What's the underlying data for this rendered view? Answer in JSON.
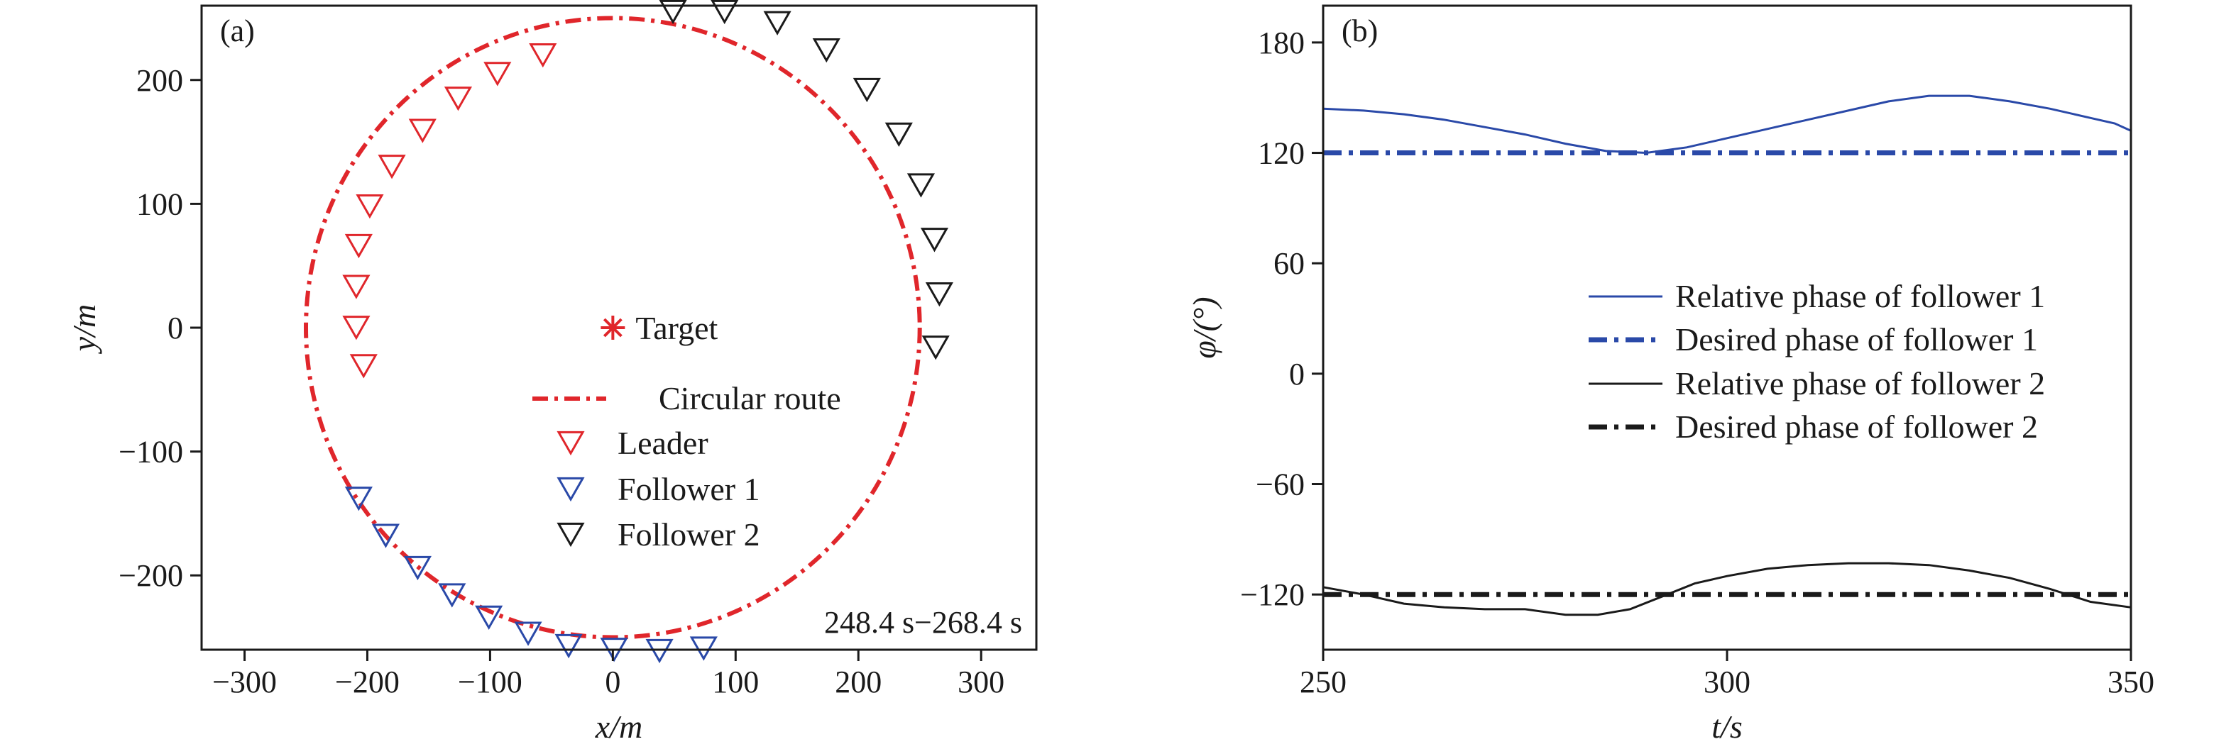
{
  "chart_data": [
    {
      "type": "scatter",
      "panel_label": "(a)",
      "xlabel": "x/m",
      "ylabel": "y/m",
      "xlim": [
        -335,
        345
      ],
      "ylim": [
        -260,
        260
      ],
      "xticks": [
        -300,
        -200,
        -100,
        0,
        100,
        200,
        300
      ],
      "yticks": [
        -200,
        -100,
        0,
        100,
        200
      ],
      "xtick_labels": [
        "−300",
        "−200",
        "−100",
        "0",
        "100",
        "200",
        "300"
      ],
      "ytick_labels": [
        "−200",
        "−100",
        "0",
        "100",
        "200"
      ],
      "annotation": "248.4 s−268.4 s",
      "target": {
        "x": 0,
        "y": 0,
        "label": "Target",
        "color": "#e0262b"
      },
      "circular_route": {
        "center": [
          0,
          0
        ],
        "radius": 250,
        "label": "Circular route",
        "color": "#e0262b"
      },
      "series": [
        {
          "name": "Leader",
          "color": "#e0262b",
          "x": [
            -57,
            -94,
            -126,
            -155,
            -180,
            -198,
            -207,
            -209,
            -209,
            -203
          ],
          "y": [
            221,
            206,
            186,
            160,
            131,
            99,
            67,
            34,
            1,
            -30
          ]
        },
        {
          "name": "Follower 1",
          "color": "#2a49a8",
          "x": [
            -207,
            -185,
            -159,
            -131,
            -101,
            -69,
            -36,
            1,
            38,
            74
          ],
          "y": [
            -137,
            -167,
            -193,
            -215,
            -233,
            -246,
            -256,
            -259,
            -260,
            -258
          ]
        },
        {
          "name": "Follower 2",
          "color": "#1a1a1a",
          "x": [
            49,
            91,
            134,
            174,
            207,
            233,
            251,
            262,
            266,
            263
          ],
          "y": [
            256,
            256,
            247,
            225,
            193,
            157,
            116,
            72,
            28,
            -15
          ]
        }
      ]
    },
    {
      "type": "line",
      "panel_label": "(b)",
      "xlabel": "t/s",
      "ylabel": "φ/(°)",
      "xlim": [
        250,
        350
      ],
      "ylim": [
        -150,
        200
      ],
      "xticks": [
        250,
        300,
        350
      ],
      "yticks": [
        -120,
        -60,
        0,
        60,
        120,
        180
      ],
      "xtick_labels": [
        "250",
        "300",
        "350"
      ],
      "ytick_labels": [
        "−120",
        "−60",
        "0",
        "60",
        "120",
        "180"
      ],
      "series": [
        {
          "name": "Relative phase of follower 1",
          "color": "#2a49a8",
          "x": [
            250,
            255,
            260,
            265,
            270,
            275,
            280,
            285,
            290,
            295,
            300,
            305,
            310,
            315,
            320,
            325,
            330,
            335,
            340,
            345,
            348,
            350
          ],
          "y": [
            144,
            143,
            141,
            138,
            134,
            130,
            125,
            121,
            120,
            123,
            128,
            133,
            138,
            143,
            148,
            151,
            151,
            148,
            144,
            139,
            136,
            132
          ]
        },
        {
          "name": "Desired phase of follower 1",
          "color": "#2a49a8",
          "x": [
            250,
            350
          ],
          "y": [
            120,
            120
          ]
        },
        {
          "name": "Relative phase of follower 2",
          "color": "#1a1a1a",
          "x": [
            250,
            255,
            260,
            265,
            270,
            275,
            280,
            284,
            288,
            292,
            296,
            300,
            305,
            310,
            315,
            320,
            325,
            330,
            335,
            340,
            345,
            350
          ],
          "y": [
            -116,
            -120,
            -125,
            -127,
            -128,
            -128,
            -131,
            -131,
            -128,
            -121,
            -114,
            -110,
            -106,
            -104,
            -103,
            -103,
            -104,
            -107,
            -111,
            -117,
            -124,
            -127
          ]
        },
        {
          "name": "Desired phase of follower 2",
          "color": "#1a1a1a",
          "x": [
            250,
            350
          ],
          "y": [
            -120,
            -120
          ]
        }
      ]
    }
  ]
}
